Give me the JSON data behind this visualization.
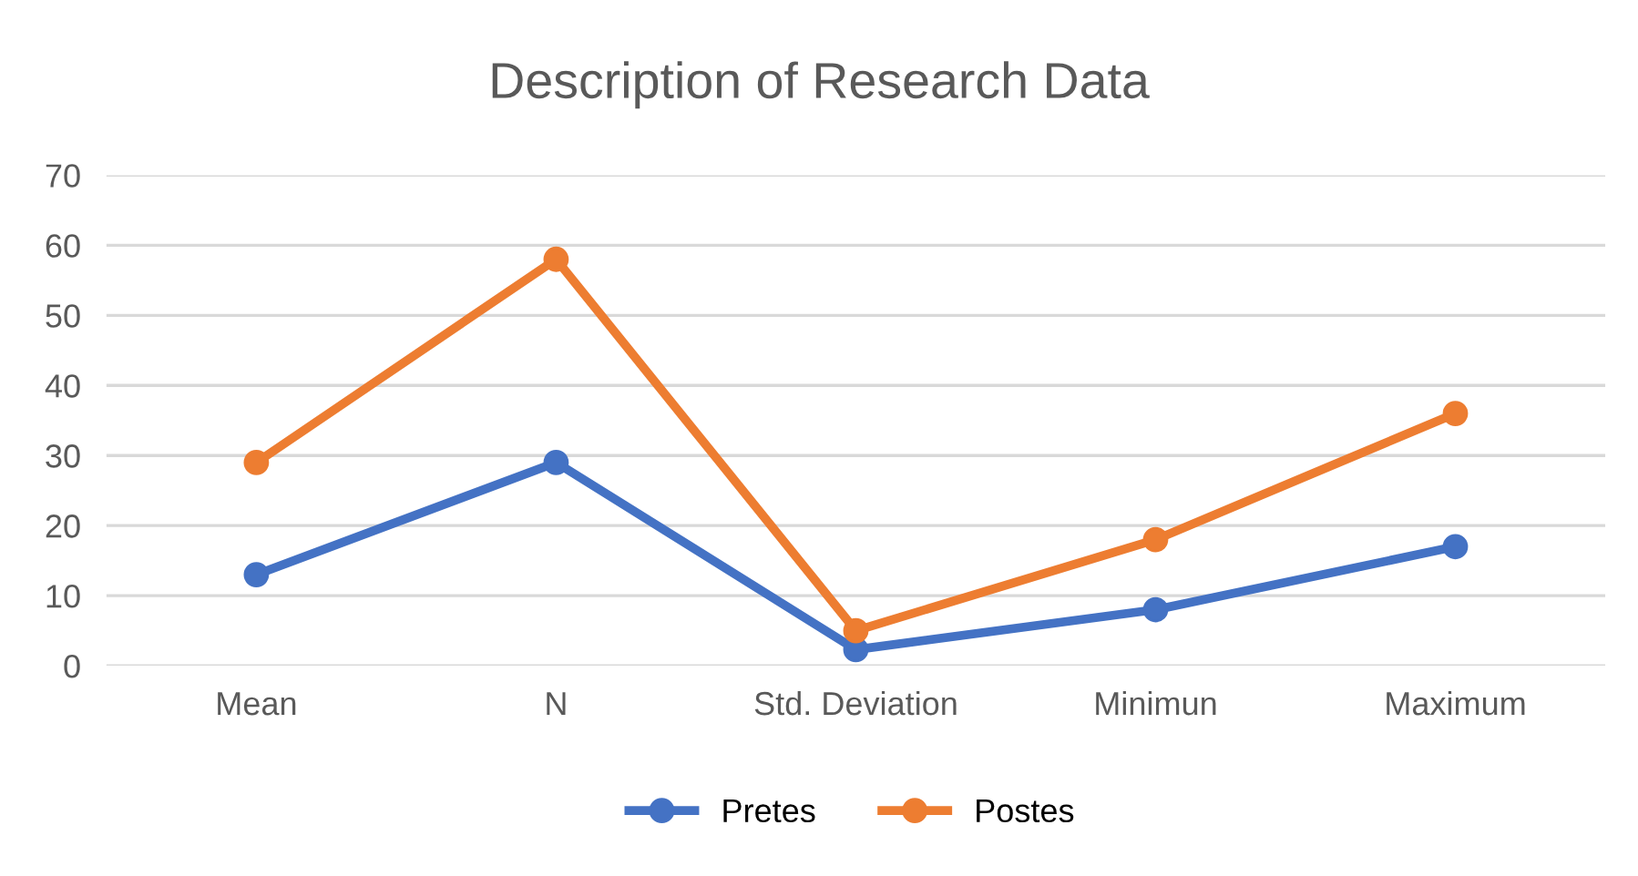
{
  "chart_data": {
    "type": "line",
    "title": "Description of Research Data",
    "categories": [
      "Mean",
      "N",
      "Std. Deviation",
      "Minimun",
      "Maximum"
    ],
    "series": [
      {
        "name": "Pretes",
        "color": "#4472c4",
        "values": [
          13,
          29,
          2.3,
          8,
          17
        ]
      },
      {
        "name": "Postes",
        "color": "#ed7d31",
        "values": [
          29,
          58,
          5,
          18,
          36
        ]
      }
    ],
    "ylim": [
      0,
      70
    ],
    "yticks": [
      0,
      10,
      20,
      30,
      40,
      50,
      60,
      70
    ],
    "grid": "y",
    "legend": "bottom",
    "marker": "circle",
    "line_style": "solid"
  }
}
